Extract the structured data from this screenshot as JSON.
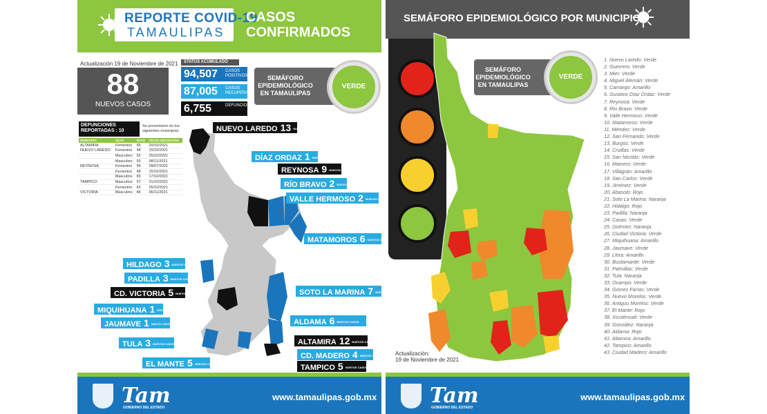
{
  "left": {
    "logo_line1": "REPORTE COVID-19",
    "logo_line2": "TAMAULIPAS",
    "heading_line1": "CASOS",
    "heading_line2": "CONFIRMADOS",
    "update": "Actualización 19 de Noviembre de 2021",
    "new_cases": {
      "value": "88",
      "label": "NUEVOS CASOS"
    },
    "status_header": "STATUS ACUMULADO",
    "stats": [
      {
        "value": "94,507",
        "label": "CASOS POSITIVOS"
      },
      {
        "value": "87,005",
        "label": "CASOS RECUPERADOS"
      },
      {
        "value": "6,755",
        "label": "DEFUNCIONES"
      }
    ],
    "semaforo": {
      "label_line1": "SEMÁFORO",
      "label_line2": "EPIDEMIOLÓGICO",
      "label_line3": "EN TAMAULIPAS",
      "status": "VERDE"
    },
    "deaths": {
      "title_line1": "DEFUNCIONES",
      "title_line2": "REPORTADAS : 10",
      "note": "Se presentaron en los siguientes municipios:",
      "headers": [
        "MUNICIPIO",
        "SEXO",
        "EDAD",
        "FECHA DEFUNCIÓN"
      ],
      "rows": [
        [
          "ALTAMIRA",
          "Femenino",
          "65",
          "20/10/2021"
        ],
        [
          "NUEVO LAREDO",
          "Femenino",
          "48",
          "15/10/2021"
        ],
        [
          "",
          "Masculino",
          "52",
          "25/10/2021"
        ],
        [
          "",
          "Masculino",
          "50",
          "08/11/2021"
        ],
        [
          "REYNOSA",
          "Femenino",
          "56",
          "28/07/2021"
        ],
        [
          "",
          "Femenino",
          "48",
          "15/10/2021"
        ],
        [
          "",
          "Masculino",
          "83",
          "17/10/2021"
        ],
        [
          "TAMPICO",
          "Masculino",
          "57",
          "21/10/2021"
        ],
        [
          "",
          "Femenino",
          "82",
          "25/10/2021"
        ],
        [
          "VICTORIA",
          "Masculino",
          "84",
          "06/11/2021"
        ]
      ]
    },
    "callouts": [
      {
        "name": "NUEVO LAREDO",
        "count": "13",
        "suffix": "NUEVOS CASOS"
      },
      {
        "name": "DÍAZ ORDAZ",
        "count": "1",
        "suffix": "NUEVO CASO"
      },
      {
        "name": "REYNOSA",
        "count": "9",
        "suffix": "NUEVOS CASOS"
      },
      {
        "name": "RÍO BRAVO",
        "count": "2",
        "suffix": "NUEVOS CASOS"
      },
      {
        "name": "VALLE HERMOSO",
        "count": "2",
        "suffix": "NUEVOS CASOS"
      },
      {
        "name": "MATAMOROS",
        "count": "6",
        "suffix": "NUEVOS CASOS"
      },
      {
        "name": "HILDAGO",
        "count": "3",
        "suffix": "NUEVOS CASOS"
      },
      {
        "name": "PADILLA",
        "count": "3",
        "suffix": "NUEVOS CASOS"
      },
      {
        "name": "CD. VICTORIA",
        "count": "5",
        "suffix": "NUEVOS CASOS"
      },
      {
        "name": "MIQUIHUANA",
        "count": "1",
        "suffix": "NUEVO CASO"
      },
      {
        "name": "JAUMAVE",
        "count": "1",
        "suffix": "NUEVO CASO"
      },
      {
        "name": "TULA",
        "count": "3",
        "suffix": "NUEVOS CASOS"
      },
      {
        "name": "EL MANTE",
        "count": "5",
        "suffix": "NUEVOS CASOS"
      },
      {
        "name": "SOTO LA MARINA",
        "count": "7",
        "suffix": "NUEVOS CASOS"
      },
      {
        "name": "ALDAMA",
        "count": "6",
        "suffix": "NUEVOS CASOS"
      },
      {
        "name": "ALTAMIRA",
        "count": "12",
        "suffix": "NUEVOS CASOS"
      },
      {
        "name": "CD. MADERO",
        "count": "4",
        "suffix": "NUEVOS CASOS"
      },
      {
        "name": "TAMPICO",
        "count": "5",
        "suffix": "NUEVOS CASOS"
      }
    ],
    "footer": {
      "logo": "Tam",
      "sub": "GOBIERNO DEL ESTADO",
      "url": "www.tamaulipas.gob.mx"
    }
  },
  "right": {
    "title": "SEMÁFORO EPIDEMIOLÓGICO POR MUNICIPIO",
    "semaforo": {
      "label_line1": "SEMÁFORO",
      "label_line2": "EPIDEMIOLÓGICO",
      "label_line3": "EN TAMAULIPAS",
      "status": "VERDE"
    },
    "update_line1": "Actualización:",
    "update_line2": "19 de Noviembre de 2021",
    "municipalities": [
      "1. Nuevo Laredo: Verde",
      "2. Guerrero: Verde",
      "3. Mier: Verde",
      "4. Miguel Alemán: Verde",
      "5. Camargo: Amarillo",
      "6. Gustavo Díaz Ordaz: Verde",
      "7. Reynosa: Verde",
      "8. Río Bravo: Verde",
      "9. Valle Hermoso: Verde",
      "10. Matamoros: Verde",
      "11. Méndez: Verde",
      "12. San Fernando: Verde",
      "13. Burgos: Verde",
      "14. Cruillas: Verde",
      "15. San Nicolás: Verde",
      "16. Mainero: Verde",
      "17. Villagrán: Amarillo",
      "18. San Carlos: Verde",
      "19. Jiménez: Verde",
      "20. Abasolo: Rojo",
      "21. Soto La Marina: Naranja",
      "22. Hidalgo: Rojo",
      "23. Padilla: Naranja",
      "24. Casas: Verde",
      "25. Güémez: Naranja",
      "26. Ciudad Victoria: Verde",
      "27. Miquihuana: Amarillo",
      "28. Jaumave: Verde",
      "29. Llera: Amarillo",
      "30. Bustamante: Verde",
      "31. Palmillas: Verde",
      "32. Tula: Naranja",
      "33. Ocampo: Verde",
      "34. Gómez Farías: Verde",
      "35. Nuevo Morelos: Verde",
      "36. Antiguo Morelos: Verde",
      "37. El Mante: Rojo",
      "38. Xicoténcatl: Verde",
      "39. González: Naranja",
      "40. Aldama: Rojo",
      "41. Altamira: Amarillo",
      "42. Tampico: Amarillo",
      "43. Ciudad Madero: Amarillo"
    ],
    "footer": {
      "logo": "Tam",
      "sub": "GOBIERNO DEL ESTADO",
      "url": "www.tamaulipas.gob.mx"
    }
  },
  "colors": {
    "green": "#8dc63f",
    "yellow": "#f7d02f",
    "orange": "#f0892b",
    "red": "#e2231a",
    "blue": "#1a75bc",
    "lightblue": "#29abe2"
  }
}
